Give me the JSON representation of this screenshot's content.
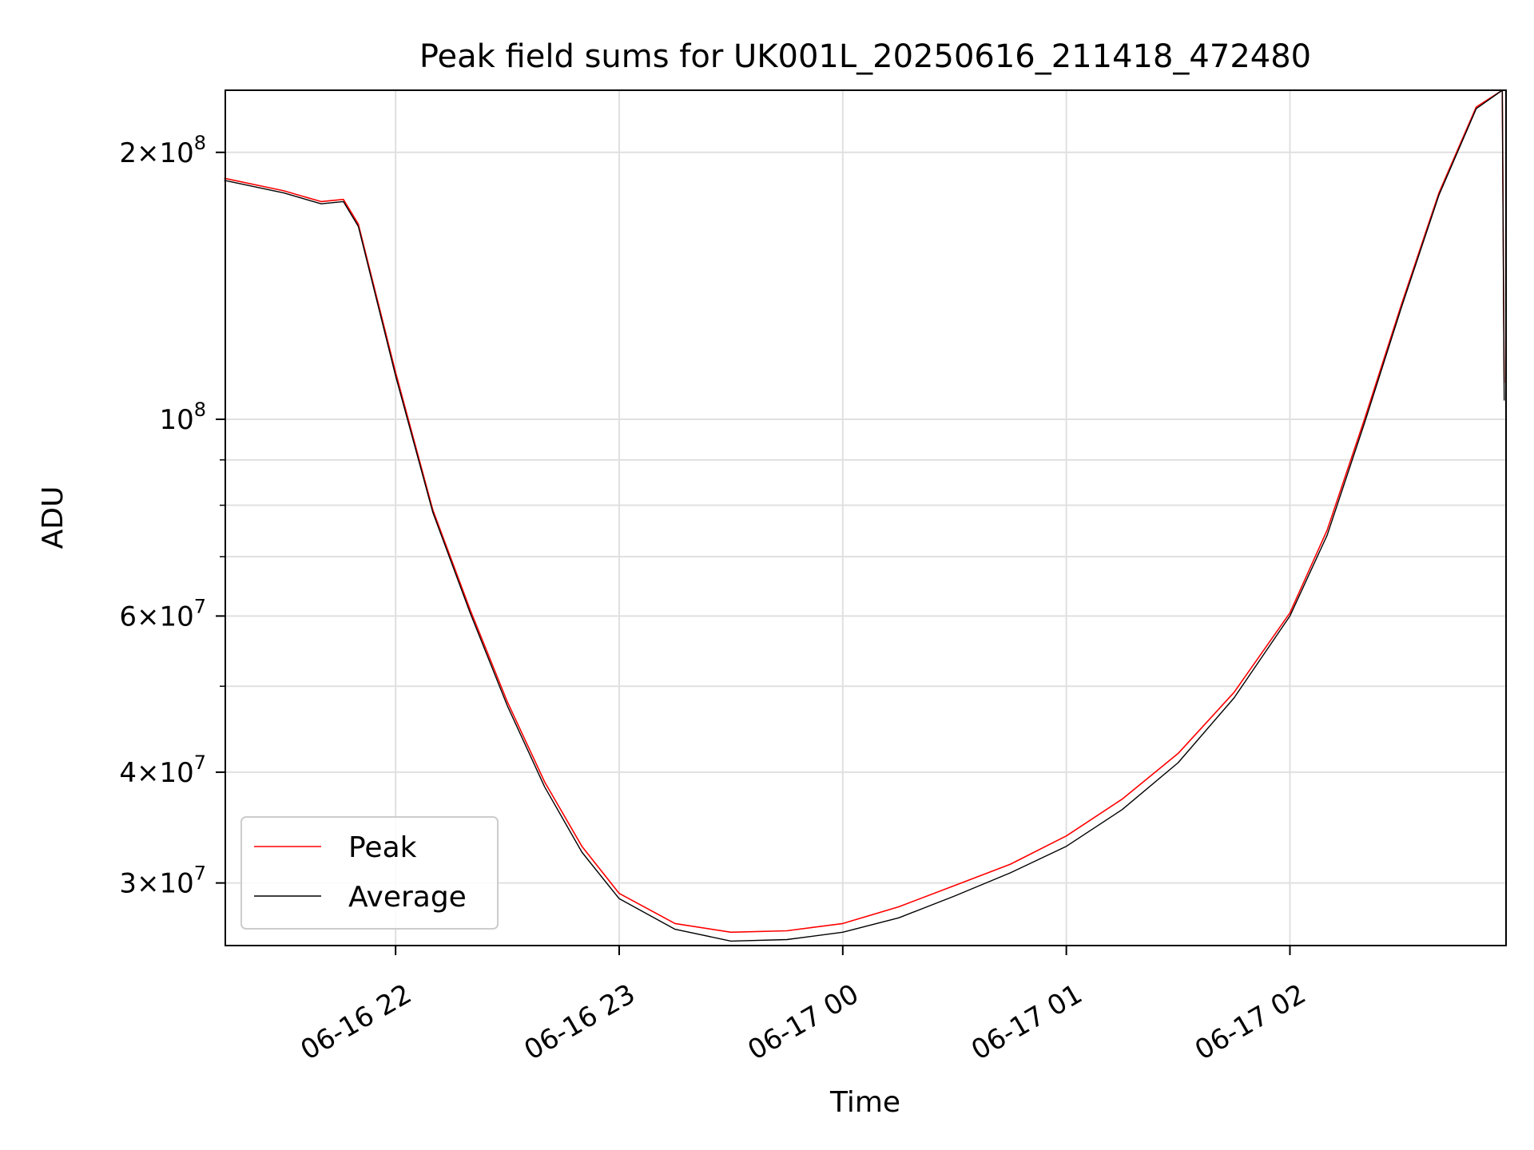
{
  "chart_data": {
    "type": "line",
    "title": "Peak field sums for UK001L_20250616_211418_472480",
    "xlabel": "Time",
    "ylabel": "ADU",
    "yscale": "log",
    "xlim": [
      "2025-06-16T21:14:18",
      "2025-06-17T02:58:00"
    ],
    "ylim": [
      25500000,
      235000000
    ],
    "x_ticks": [
      {
        "value": "2025-06-16T22:00",
        "label": "06-16 22"
      },
      {
        "value": "2025-06-16T23:00",
        "label": "06-16 23"
      },
      {
        "value": "2025-06-17T00:00",
        "label": "06-17 00"
      },
      {
        "value": "2025-06-17T01:00",
        "label": "06-17 01"
      },
      {
        "value": "2025-06-17T02:00",
        "label": "06-17 02"
      }
    ],
    "y_ticks": [
      {
        "value": 30000000,
        "mantissa": "3",
        "exponent": "7"
      },
      {
        "value": 40000000,
        "mantissa": "4",
        "exponent": "7"
      },
      {
        "value": 60000000,
        "mantissa": "6",
        "exponent": "7"
      },
      {
        "value": 100000000,
        "mantissa": "",
        "exponent": "8"
      },
      {
        "value": 200000000,
        "mantissa": "2",
        "exponent": "8"
      }
    ],
    "y_minor_gridlines": [
      50000000,
      70000000,
      80000000,
      90000000
    ],
    "grid": true,
    "legend_position": "lower-left",
    "x": [
      "2025-06-16T21:14",
      "2025-06-16T21:30",
      "2025-06-16T21:40",
      "2025-06-16T21:46",
      "2025-06-16T21:50",
      "2025-06-16T22:00",
      "2025-06-16T22:10",
      "2025-06-16T22:20",
      "2025-06-16T22:30",
      "2025-06-16T22:40",
      "2025-06-16T22:50",
      "2025-06-16T23:00",
      "2025-06-16T23:15",
      "2025-06-16T23:30",
      "2025-06-16T23:45",
      "2025-06-17T00:00",
      "2025-06-17T00:15",
      "2025-06-17T00:30",
      "2025-06-17T00:45",
      "2025-06-17T01:00",
      "2025-06-17T01:15",
      "2025-06-17T01:30",
      "2025-06-17T01:45",
      "2025-06-17T02:00",
      "2025-06-17T02:10",
      "2025-06-17T02:20",
      "2025-06-17T02:30",
      "2025-06-17T02:40",
      "2025-06-17T02:50",
      "2025-06-17T02:57",
      "2025-06-17T02:57:30"
    ],
    "series": [
      {
        "name": "Peak",
        "color": "#ff0000",
        "values": [
          187000000,
          181000000,
          176000000,
          177000000,
          166000000,
          113000000,
          79000000,
          61000000,
          48000000,
          39000000,
          33000000,
          29200000,
          27000000,
          26400000,
          26500000,
          27000000,
          28200000,
          29800000,
          31500000,
          33900000,
          37300000,
          42000000,
          49200000,
          60500000,
          75000000,
          100000000,
          135000000,
          180000000,
          225000000,
          235000000,
          110000000
        ]
      },
      {
        "name": "Average",
        "color": "#000000",
        "values": [
          186000000,
          180000000,
          175000000,
          176000000,
          165000000,
          112000000,
          78500000,
          60500000,
          47500000,
          38500000,
          32500000,
          28800000,
          26600000,
          25800000,
          25900000,
          26400000,
          27400000,
          29000000,
          30800000,
          33000000,
          36300000,
          41000000,
          48500000,
          60000000,
          74000000,
          99000000,
          134000000,
          179000000,
          224000000,
          235000000,
          105000000
        ]
      }
    ]
  }
}
